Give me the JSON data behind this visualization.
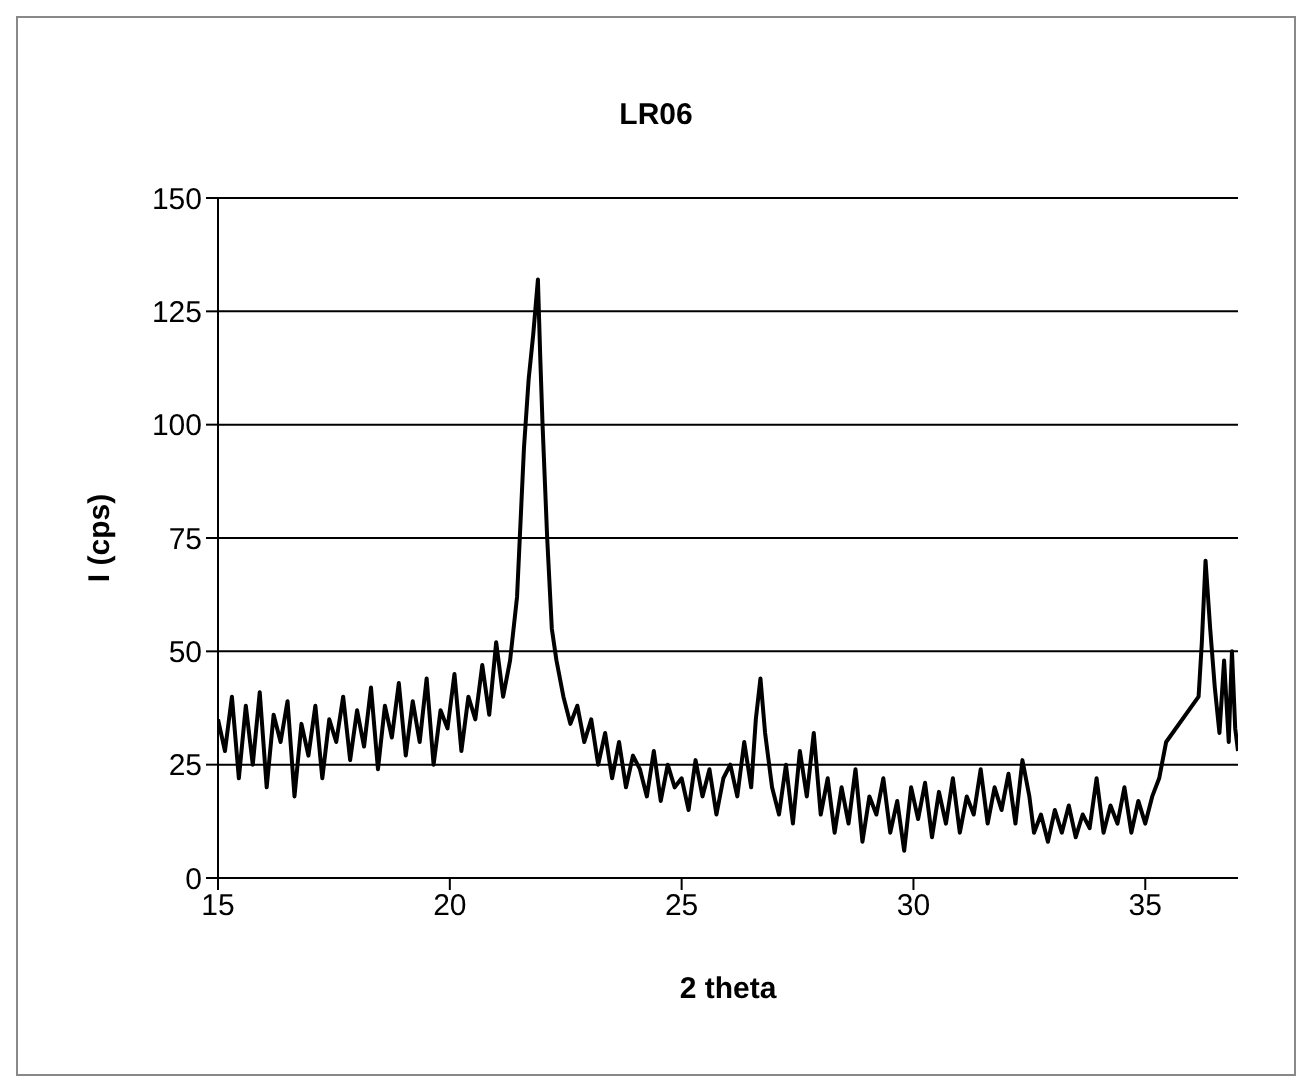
{
  "chart_data": {
    "type": "line",
    "title": "LR06",
    "xlabel": "2 theta",
    "ylabel": "I (cps)",
    "xlim": [
      15,
      37
    ],
    "ylim": [
      0,
      150
    ],
    "xticks": [
      15,
      20,
      25,
      30,
      35
    ],
    "yticks": [
      0,
      25,
      50,
      75,
      100,
      125,
      150
    ],
    "grid": "y",
    "legend": false,
    "marker": "none",
    "series": [
      {
        "color": "#000000",
        "x": [
          15,
          15.15,
          15.3,
          15.45,
          15.6,
          15.75,
          15.9,
          16.05,
          16.2,
          16.35,
          16.5,
          16.65,
          16.8,
          16.95,
          17.1,
          17.25,
          17.4,
          17.55,
          17.7,
          17.85,
          18,
          18.15,
          18.3,
          18.45,
          18.6,
          18.75,
          18.9,
          19.05,
          19.2,
          19.35,
          19.5,
          19.65,
          19.8,
          19.95,
          20.1,
          20.25,
          20.4,
          20.55,
          20.7,
          20.85,
          21,
          21.15,
          21.3,
          21.45,
          21.6,
          21.7,
          21.8,
          21.9,
          21.95,
          22,
          22.1,
          22.2,
          22.3,
          22.45,
          22.6,
          22.75,
          22.9,
          23.05,
          23.2,
          23.35,
          23.5,
          23.65,
          23.8,
          23.95,
          24.1,
          24.25,
          24.4,
          24.55,
          24.7,
          24.85,
          25,
          25.15,
          25.3,
          25.45,
          25.6,
          25.75,
          25.9,
          26.05,
          26.2,
          26.35,
          26.5,
          26.6,
          26.7,
          26.8,
          26.95,
          27.1,
          27.25,
          27.4,
          27.55,
          27.7,
          27.85,
          28,
          28.15,
          28.3,
          28.45,
          28.6,
          28.75,
          28.9,
          29.05,
          29.2,
          29.35,
          29.5,
          29.65,
          29.8,
          29.95,
          30.1,
          30.25,
          30.4,
          30.55,
          30.7,
          30.85,
          31,
          31.15,
          31.3,
          31.45,
          31.6,
          31.75,
          31.9,
          32.05,
          32.2,
          32.35,
          32.5,
          32.6,
          32.75,
          32.9,
          33.05,
          33.2,
          33.35,
          33.5,
          33.65,
          33.8,
          33.95,
          34.1,
          34.25,
          34.4,
          34.55,
          34.7,
          34.85,
          35,
          35.15,
          35.3,
          35.45,
          36.15,
          36.22,
          36.3,
          36.4,
          36.5,
          36.6,
          36.7,
          36.8,
          36.87,
          36.94,
          37
        ],
        "values": [
          35,
          28,
          40,
          22,
          38,
          25,
          41,
          20,
          36,
          30,
          39,
          18,
          34,
          27,
          38,
          22,
          35,
          30,
          40,
          26,
          37,
          29,
          42,
          24,
          38,
          31,
          43,
          27,
          39,
          30,
          44,
          25,
          37,
          33,
          45,
          28,
          40,
          35,
          47,
          36,
          52,
          40,
          48,
          62,
          95,
          110,
          120,
          132,
          115,
          100,
          75,
          55,
          48,
          40,
          34,
          38,
          30,
          35,
          25,
          32,
          22,
          30,
          20,
          27,
          24,
          18,
          28,
          17,
          25,
          20,
          22,
          15,
          26,
          18,
          24,
          14,
          22,
          25,
          18,
          30,
          20,
          35,
          44,
          32,
          20,
          14,
          25,
          12,
          28,
          18,
          32,
          14,
          22,
          10,
          20,
          12,
          24,
          8,
          18,
          14,
          22,
          10,
          17,
          6,
          20,
          13,
          21,
          9,
          19,
          12,
          22,
          10,
          18,
          14,
          24,
          12,
          20,
          15,
          23,
          12,
          26,
          18,
          10,
          14,
          8,
          15,
          10,
          16,
          9,
          14,
          11,
          22,
          10,
          16,
          12,
          20,
          10,
          17,
          12,
          18,
          22,
          30,
          40,
          52,
          70,
          55,
          42,
          32,
          48,
          30,
          50,
          33,
          28
        ]
      }
    ]
  }
}
